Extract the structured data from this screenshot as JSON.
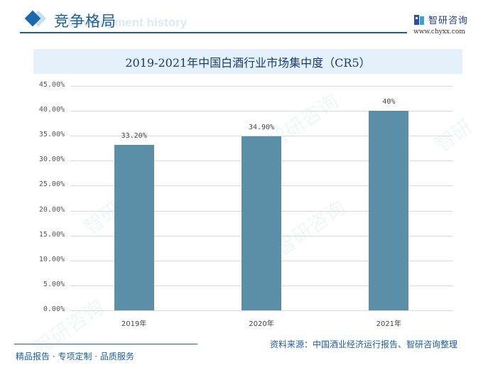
{
  "header": {
    "section_title": "竞争格局",
    "section_subtitle": "Development history",
    "logo_text": "智研咨询",
    "logo_url": "www.chyxx.com"
  },
  "chart_title": "2019-2021年中国白酒行业市场集中度（CR5）",
  "chart_data": {
    "type": "bar",
    "title": "2019-2021年中国白酒行业市场集中度（CR5）",
    "categories": [
      "2019年",
      "2020年",
      "2021年"
    ],
    "values": [
      33.2,
      34.9,
      40.0
    ],
    "value_labels": [
      "33.20%",
      "34.90%",
      "40%"
    ],
    "xlabel": "",
    "ylabel": "",
    "ylim": [
      0,
      45
    ],
    "yticks": [
      "0.00%",
      "5.00%",
      "10.00%",
      "15.00%",
      "20.00%",
      "25.00%",
      "30.00%",
      "35.00%",
      "40.00%",
      "45.00%"
    ],
    "grid": true,
    "legend": "none",
    "bar_color": "#5b8fa8"
  },
  "footer": {
    "left": "精品报告 · 专项定制 · 品质服务",
    "source": "资料来源：中国酒业经济运行报告、智研咨询整理"
  },
  "colors": {
    "accent": "#1d5e96",
    "bar": "#5b8fa8",
    "title_bg": "#e5f1fa"
  }
}
